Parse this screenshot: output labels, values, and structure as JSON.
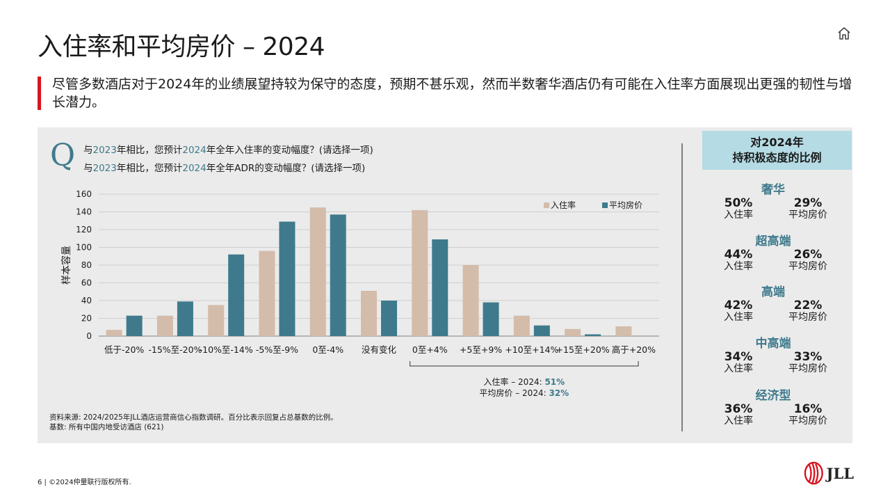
{
  "page": {
    "title": "入住率和平均房价 – 2024",
    "subtitle": "尽管多数酒店对于2024年的业绩展望持较为保守的态度，预期不甚乐观，然而半数奢华酒店仍有可能在入住率方面展现出更强的韧性与增长潜力。",
    "home_icon": "home-icon"
  },
  "question": {
    "letter": "Q",
    "line1": {
      "a": "与",
      "y1": "2023",
      "b": "年相比，您预计",
      "y2": "2024",
      "c": "年全年入住率的变动幅度？(请选择一项)"
    },
    "line2": {
      "a": "与",
      "y1": "2023",
      "b": "年相比，您预计",
      "y2": "2024",
      "c": "年全年ADR的变动幅度？(请选择一项)"
    }
  },
  "chart_data": {
    "type": "bar",
    "ylabel": "样本容量",
    "ylim": [
      0,
      160
    ],
    "yticks": [
      0,
      20,
      40,
      60,
      80,
      100,
      120,
      140,
      160
    ],
    "categories": [
      "低于-20%",
      "-15%至-20%",
      "-10%至-14%",
      "-5%至-9%",
      "0至-4%",
      "没有变化",
      "0至+4%",
      "+5至+9%",
      "+10至+14%",
      "+15至+20%",
      "高于+20%"
    ],
    "series": [
      {
        "name": "入住率",
        "color": "#d4bcaa",
        "values": [
          7,
          23,
          35,
          96,
          145,
          51,
          142,
          80,
          23,
          8,
          11
        ]
      },
      {
        "name": "平均房价",
        "color": "#3f7a8c",
        "values": [
          23,
          39,
          92,
          129,
          137,
          40,
          109,
          38,
          12,
          2,
          0
        ]
      }
    ],
    "legend_position": "top-right",
    "grid": true,
    "bracket_note": {
      "line1_label": "入住率 – 2024: ",
      "line1_value": "51%",
      "line2_label": "平均房价 – 2024: ",
      "line2_value": "32%"
    }
  },
  "source": {
    "line1": "资料来源: 2024/2025年JLL酒店运营商信心指数调研。百分比表示回复占总基数的比例。",
    "line2": "基数: 所有中国内地受访酒店 (621)"
  },
  "sidebar": {
    "header": [
      "对2024年",
      "持积极态度的比例"
    ],
    "segments": [
      {
        "name": "奢华",
        "occ": "50%",
        "adr": "29%"
      },
      {
        "name": "超高端",
        "occ": "44%",
        "adr": "26%"
      },
      {
        "name": "高端",
        "occ": "42%",
        "adr": "22%"
      },
      {
        "name": "中高端",
        "occ": "34%",
        "adr": "33%"
      },
      {
        "name": "经济型",
        "occ": "36%",
        "adr": "16%"
      }
    ],
    "occ_label": "入住率",
    "adr_label": "平均房价"
  },
  "footer": {
    "page": "6",
    "sep": " | ",
    "copyright": "©2024仲量联行版权所有."
  },
  "logo": {
    "text": "JLL"
  }
}
